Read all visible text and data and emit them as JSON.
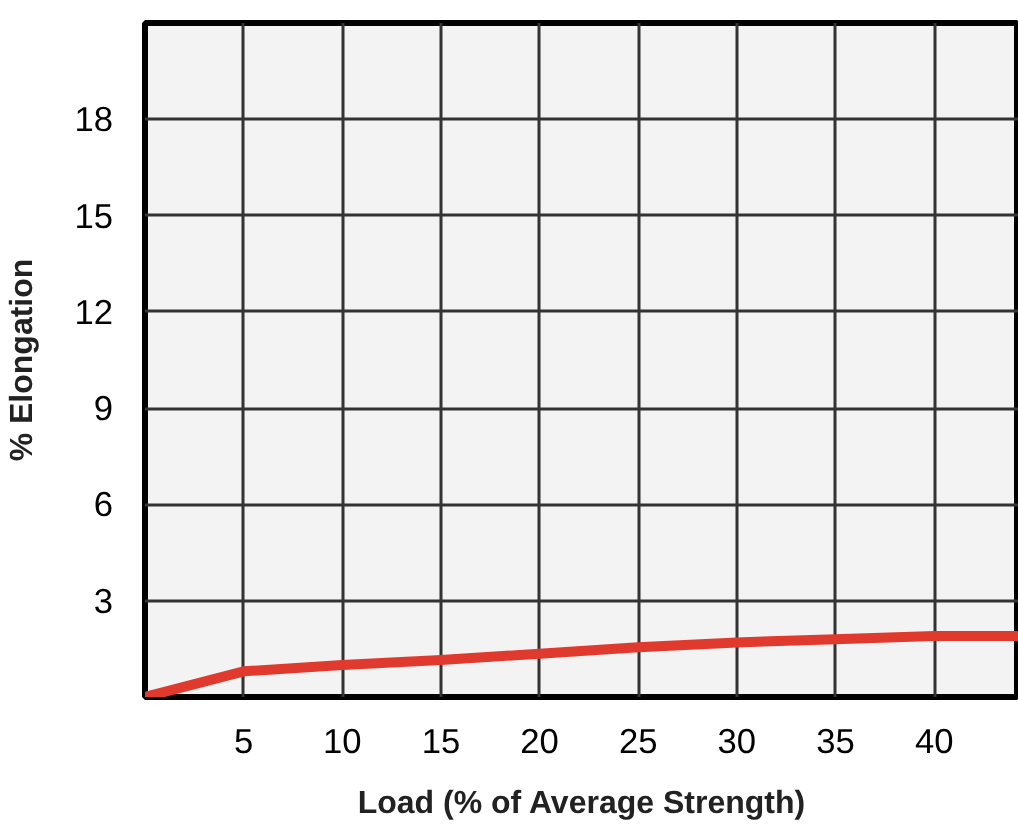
{
  "chart_data": {
    "type": "line",
    "xlabel": "Load (% of Average Strength)",
    "ylabel": "% Elongation",
    "x": [
      0,
      5,
      10,
      15,
      20,
      25,
      30,
      35,
      40,
      44.3
    ],
    "series": [
      {
        "color": "#e03a2e",
        "values": [
          0,
          0.8,
          1.0,
          1.15,
          1.35,
          1.55,
          1.7,
          1.8,
          1.9,
          1.9
        ]
      }
    ],
    "xlim": [
      0,
      44.3
    ],
    "ylim": [
      0,
      21
    ],
    "xticks": [
      5,
      10,
      15,
      20,
      25,
      30,
      35,
      40
    ],
    "yticks": [
      3,
      6,
      9,
      12,
      15,
      18
    ],
    "grid": true,
    "marker": "none",
    "line_style": "solid"
  }
}
